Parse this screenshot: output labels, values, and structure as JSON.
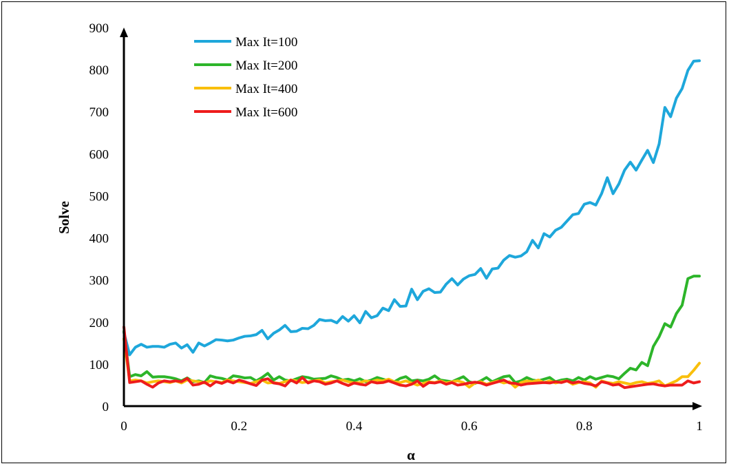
{
  "chart_data": {
    "type": "line",
    "xlabel": "α",
    "ylabel": "Solve",
    "xlim": [
      0,
      1
    ],
    "ylim": [
      0,
      900
    ],
    "xticks": [
      "0",
      "0.2",
      "0.4",
      "0.6",
      "0.8",
      "1"
    ],
    "yticks": [
      "0",
      "100",
      "200",
      "300",
      "400",
      "500",
      "600",
      "700",
      "800",
      "900"
    ],
    "grid": false,
    "legend_position": "top-left",
    "x": [
      0,
      0.01,
      0.02,
      0.03,
      0.04,
      0.05,
      0.06,
      0.07,
      0.08,
      0.09,
      0.1,
      0.11,
      0.12,
      0.13,
      0.14,
      0.15,
      0.16,
      0.17,
      0.18,
      0.19,
      0.2,
      0.21,
      0.22,
      0.23,
      0.24,
      0.25,
      0.26,
      0.27,
      0.28,
      0.29,
      0.3,
      0.31,
      0.32,
      0.33,
      0.34,
      0.35,
      0.36,
      0.37,
      0.38,
      0.39,
      0.4,
      0.41,
      0.42,
      0.43,
      0.44,
      0.45,
      0.46,
      0.47,
      0.48,
      0.49,
      0.5,
      0.51,
      0.52,
      0.53,
      0.54,
      0.55,
      0.56,
      0.57,
      0.58,
      0.59,
      0.6,
      0.61,
      0.62,
      0.63,
      0.64,
      0.65,
      0.66,
      0.67,
      0.68,
      0.69,
      0.7,
      0.71,
      0.72,
      0.73,
      0.74,
      0.75,
      0.76,
      0.77,
      0.78,
      0.79,
      0.8,
      0.81,
      0.82,
      0.83,
      0.84,
      0.85,
      0.86,
      0.87,
      0.88,
      0.89,
      0.9,
      0.91,
      0.92,
      0.93,
      0.94,
      0.95,
      0.96,
      0.97,
      0.98,
      0.99,
      1
    ],
    "series": [
      {
        "name": "Max It=100",
        "color": "#1ea7db",
        "values": [
          175,
          122,
          140,
          147,
          140,
          142,
          142,
          140,
          147,
          150,
          138,
          146,
          128,
          150,
          143,
          150,
          158,
          157,
          155,
          157,
          162,
          166,
          167,
          170,
          180,
          160,
          173,
          181,
          192,
          177,
          178,
          185,
          184,
          192,
          206,
          203,
          204,
          198,
          213,
          202,
          215,
          198,
          225,
          210,
          215,
          233,
          227,
          253,
          237,
          238,
          278,
          253,
          273,
          279,
          270,
          271,
          290,
          303,
          288,
          302,
          310,
          313,
          327,
          304,
          326,
          328,
          347,
          358,
          354,
          357,
          367,
          394,
          376,
          410,
          402,
          418,
          425,
          440,
          455,
          458,
          480,
          484,
          478,
          505,
          543,
          505,
          528,
          561,
          580,
          561,
          585,
          608,
          579,
          623,
          710,
          688,
          732,
          755,
          798,
          820,
          821
        ]
      },
      {
        "name": "Max It=200",
        "color": "#2db52a",
        "values": [
          178,
          70,
          75,
          72,
          82,
          69,
          70,
          70,
          68,
          65,
          60,
          67,
          58,
          60,
          56,
          72,
          68,
          66,
          62,
          72,
          70,
          67,
          68,
          60,
          68,
          78,
          62,
          70,
          62,
          60,
          65,
          70,
          68,
          64,
          65,
          66,
          72,
          68,
          62,
          64,
          60,
          65,
          58,
          62,
          68,
          64,
          60,
          58,
          66,
          70,
          60,
          62,
          60,
          64,
          72,
          62,
          60,
          58,
          64,
          70,
          58,
          54,
          60,
          68,
          58,
          64,
          70,
          72,
          56,
          60,
          68,
          62,
          60,
          64,
          68,
          58,
          62,
          64,
          60,
          68,
          62,
          70,
          64,
          68,
          72,
          70,
          65,
          78,
          90,
          86,
          104,
          96,
          142,
          165,
          196,
          188,
          220,
          240,
          303,
          309,
          309
        ]
      },
      {
        "name": "Max It=400",
        "color": "#f9bf0c",
        "values": [
          160,
          60,
          62,
          60,
          55,
          58,
          60,
          58,
          56,
          60,
          55,
          62,
          60,
          58,
          55,
          60,
          58,
          56,
          62,
          60,
          58,
          56,
          54,
          58,
          62,
          55,
          56,
          54,
          58,
          62,
          60,
          56,
          58,
          60,
          62,
          55,
          58,
          60,
          62,
          58,
          55,
          56,
          60,
          58,
          62,
          60,
          64,
          58,
          56,
          60,
          55,
          50,
          54,
          58,
          56,
          60,
          55,
          58,
          60,
          56,
          45,
          55,
          58,
          52,
          56,
          60,
          55,
          58,
          45,
          56,
          60,
          58,
          62,
          56,
          60,
          55,
          58,
          60,
          52,
          56,
          58,
          55,
          45,
          60,
          56,
          54,
          58,
          55,
          52,
          56,
          58,
          54,
          56,
          60,
          48,
          54,
          60,
          70,
          70,
          85,
          102
        ]
      },
      {
        "name": "Max It=600",
        "color": "#ee1c1c",
        "values": [
          188,
          56,
          58,
          60,
          52,
          45,
          55,
          60,
          58,
          60,
          58,
          66,
          50,
          52,
          57,
          48,
          58,
          54,
          60,
          55,
          62,
          58,
          53,
          49,
          62,
          65,
          55,
          53,
          48,
          62,
          55,
          68,
          55,
          60,
          58,
          52,
          55,
          60,
          54,
          49,
          55,
          52,
          50,
          58,
          55,
          56,
          60,
          55,
          50,
          48,
          52,
          60,
          47,
          56,
          55,
          58,
          52,
          56,
          50,
          52,
          55,
          57,
          55,
          50,
          54,
          58,
          62,
          55,
          54,
          50,
          53,
          54,
          55,
          56,
          55,
          58,
          56,
          60,
          55,
          58,
          54,
          52,
          48,
          58,
          55,
          50,
          52,
          44,
          46,
          48,
          50,
          52,
          53,
          50,
          48,
          50,
          50,
          50,
          60,
          55,
          58
        ]
      }
    ]
  }
}
